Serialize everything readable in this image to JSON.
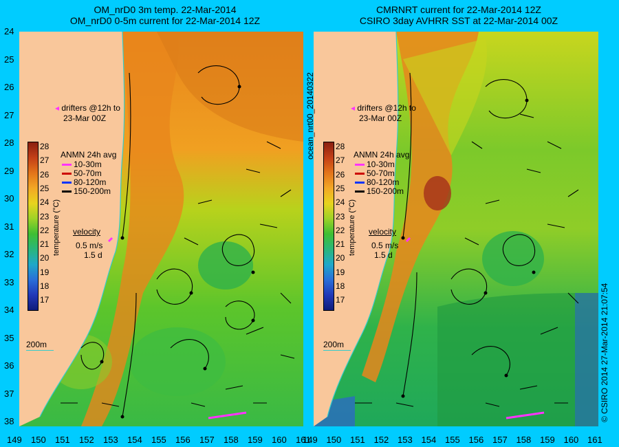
{
  "left_panel": {
    "title_line1": "OM_nrD0 3m temp. 22-Mar-2014",
    "title_line2": "OM_nrD0 0-5m current for 22-Mar-2014 12Z"
  },
  "right_panel": {
    "title_line1": "CMRNRT current for 22-Mar-2014 12Z",
    "title_line2": "CSIRO 3day AVHRR SST at 22-Mar-2014 00Z"
  },
  "y_ticks": [
    "24",
    "25",
    "26",
    "27",
    "28",
    "29",
    "30",
    "31",
    "32",
    "33",
    "34",
    "35",
    "36",
    "37",
    "38"
  ],
  "x_ticks": [
    "149",
    "150",
    "151",
    "152",
    "153",
    "154",
    "155",
    "156",
    "157",
    "158",
    "159",
    "160",
    "161"
  ],
  "legend": {
    "drifters_line1": "drifters @12h to",
    "drifters_line2": "23-Mar 00Z",
    "anmn_title": "ANMN 24h avg",
    "anmn_items": [
      {
        "label": "10-30m",
        "color": "#ff33ff"
      },
      {
        "label": "50-70m",
        "color": "#cc0000"
      },
      {
        "label": "80-120m",
        "color": "#0033ff"
      },
      {
        "label": "150-200m",
        "color": "#000000"
      }
    ],
    "velocity_title": "velocity",
    "velocity_value": "0.5 m/s",
    "velocity_days": "1.5 d",
    "depth_label": "200m",
    "colorbar_label": "temperature (°C)",
    "colorbar_ticks": [
      "28",
      "27",
      "26",
      "25",
      "24",
      "23",
      "22",
      "21",
      "20",
      "19",
      "18",
      "17"
    ]
  },
  "side_label": "ocean_nrt00_20140322",
  "copyright": "© CSIRO 2014   27-Mar-2014 21:07:54",
  "colors": {
    "background": "#00ccff",
    "land": "#f9c79b",
    "warm": "#e87a16",
    "mid": "#c8d61e",
    "cool": "#2fba3c"
  }
}
